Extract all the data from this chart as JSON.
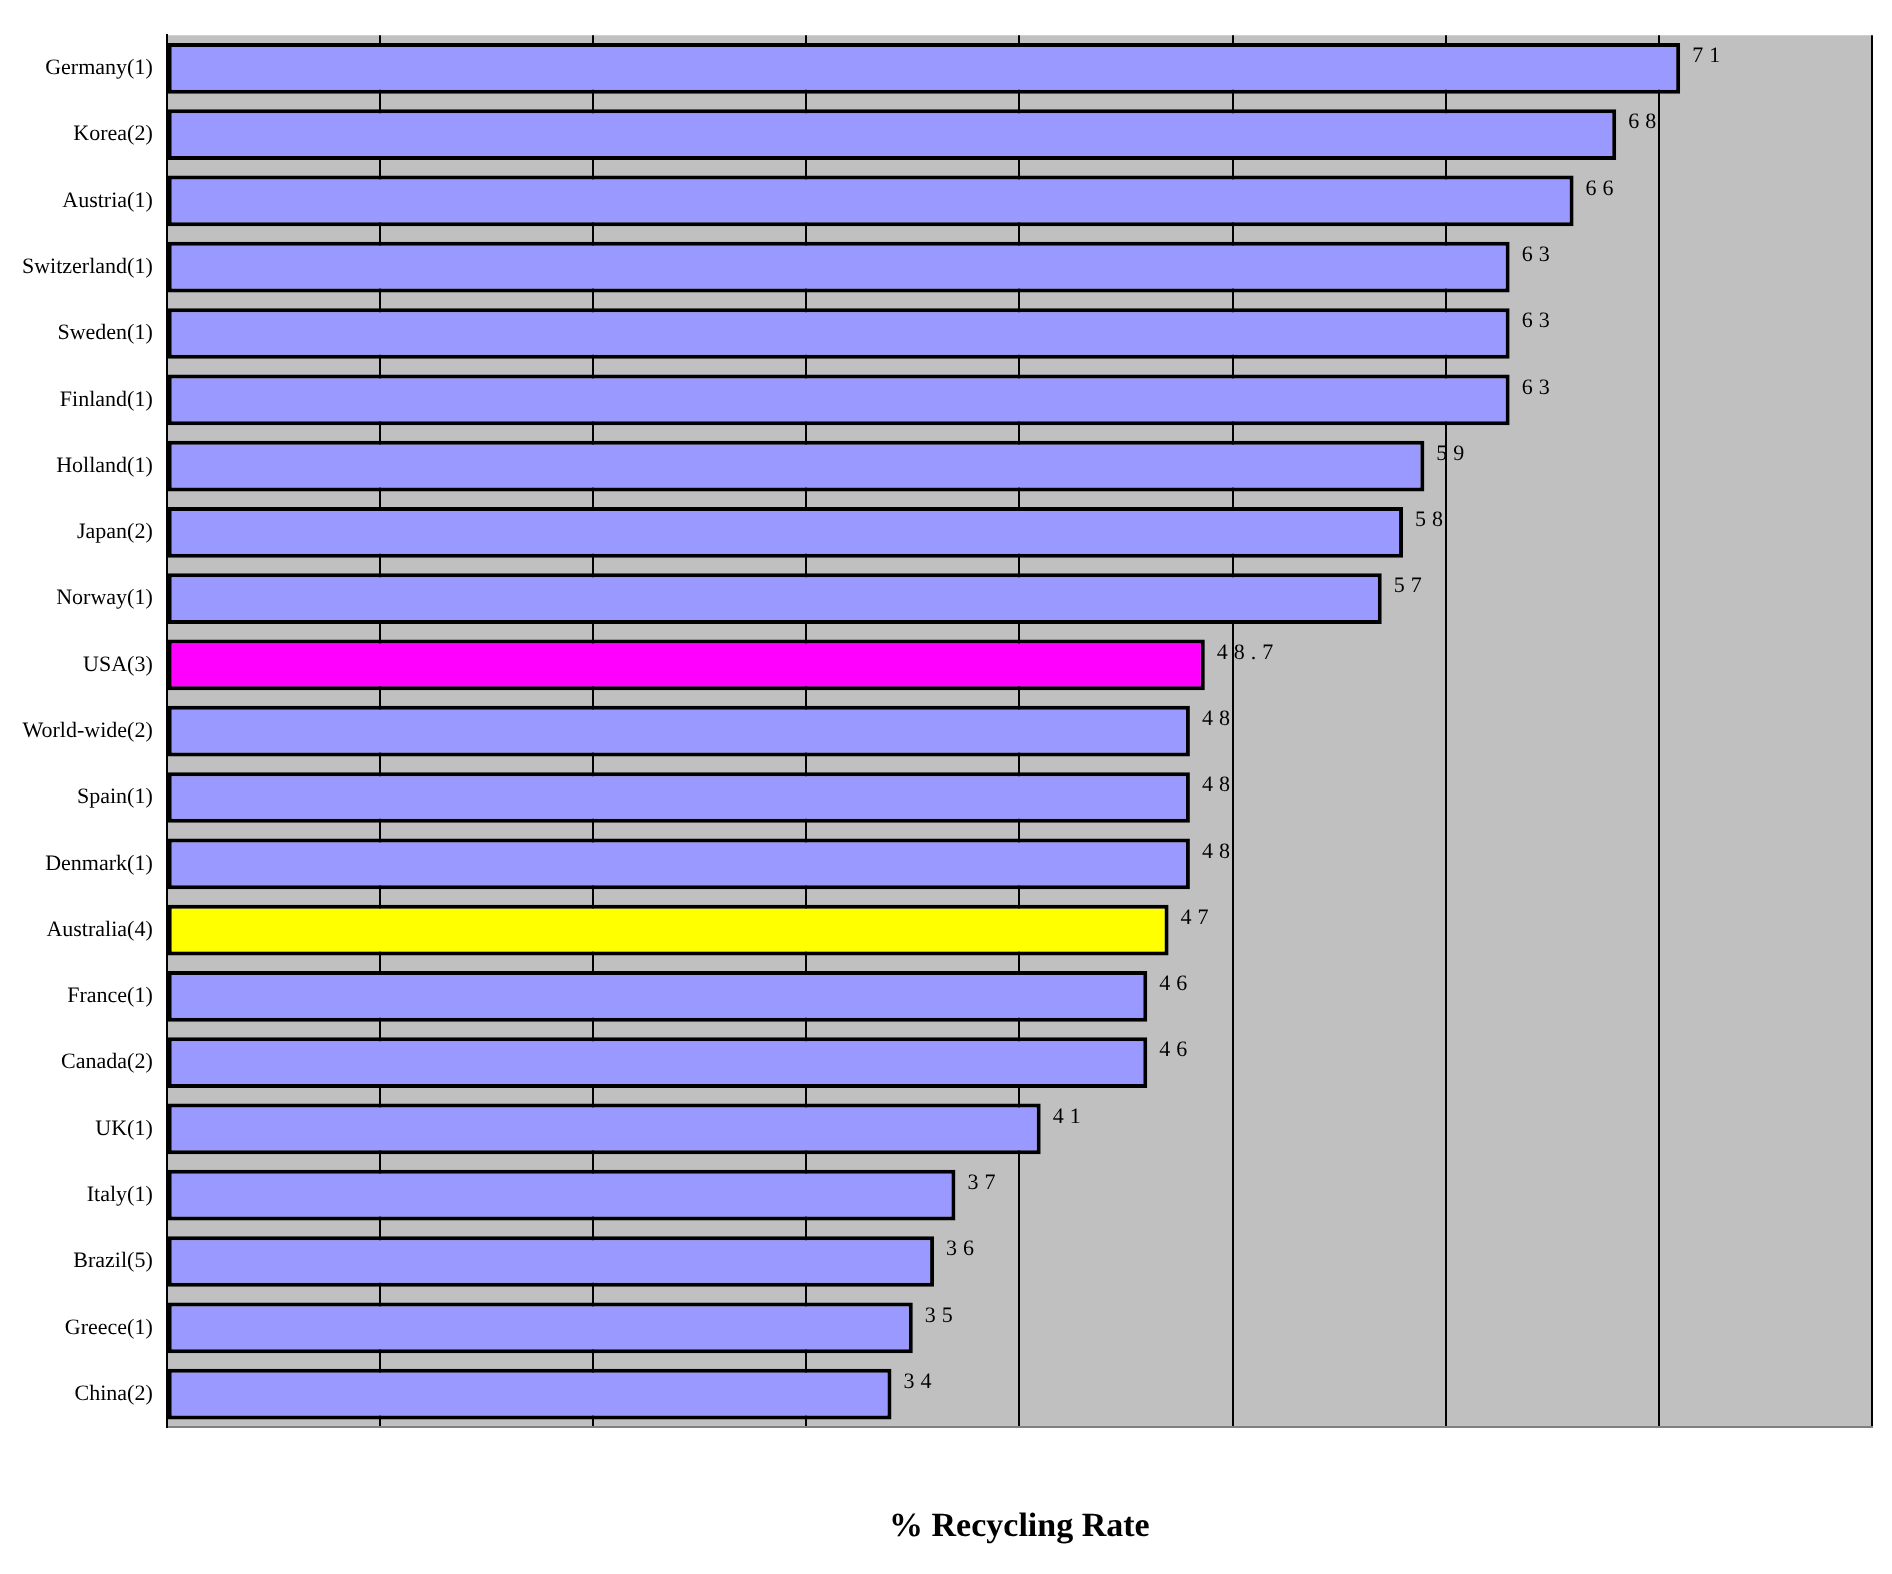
{
  "chart_data": {
    "type": "bar",
    "orientation": "horizontal",
    "xlabel": "% Recycling Rate",
    "categories": [
      "Germany(1)",
      "Korea(2)",
      "Austria(1)",
      "Switzerland(1)",
      "Sweden(1)",
      "Finland(1)",
      "Holland(1)",
      "Japan(2)",
      "Norway(1)",
      "USA(3)",
      "World-wide(2)",
      "Spain(1)",
      "Denmark(1)",
      "Australia(4)",
      "France(1)",
      "Canada(2)",
      "UK(1)",
      "Italy(1)",
      "Brazil(5)",
      "Greece(1)",
      "China(2)"
    ],
    "values": [
      71,
      68,
      66,
      63,
      63,
      63,
      59,
      58,
      57,
      48.7,
      48,
      48,
      48,
      47,
      46,
      46,
      41,
      37,
      36,
      35,
      34
    ],
    "colors": [
      "#9999ff",
      "#9999ff",
      "#9999ff",
      "#9999ff",
      "#9999ff",
      "#9999ff",
      "#9999ff",
      "#9999ff",
      "#9999ff",
      "#ff00ff",
      "#9999ff",
      "#9999ff",
      "#9999ff",
      "#ffff00",
      "#9999ff",
      "#9999ff",
      "#9999ff",
      "#9999ff",
      "#9999ff",
      "#9999ff",
      "#9999ff"
    ],
    "grid": "x",
    "tick_labels": "y",
    "data_labels": true,
    "legend": false
  }
}
